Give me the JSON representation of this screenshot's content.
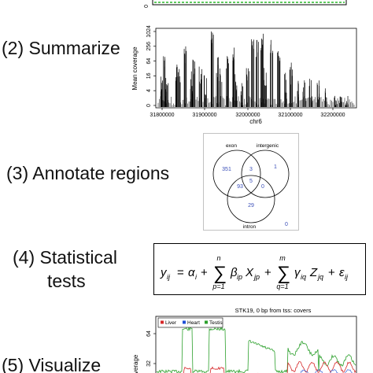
{
  "steps": {
    "summarize": "(2) Summarize",
    "annotate": "(3) Annotate regions",
    "statistical_line1": "(4) Statistical",
    "statistical_line2": "tests",
    "visualize": "(5) Visualize"
  },
  "coverage_plot": {
    "ylabel": "Mean coverage",
    "xlabel": "chr6",
    "y_ticks": [
      "0",
      "4",
      "16",
      "64",
      "256",
      "1024"
    ],
    "x_ticks": [
      "31800000",
      "31900000",
      "32000000",
      "32100000",
      "32200000"
    ],
    "top_fragment_tick": "0"
  },
  "venn": {
    "labels": {
      "exon": "exon",
      "intergenic": "intergenic",
      "intron": "intron"
    },
    "counts": {
      "exon_only": "351",
      "intergenic_only": "1",
      "exon_intergenic": "3",
      "all_three": "5",
      "exon_intron": "93",
      "intergenic_intron": "0",
      "intron_only": "29",
      "none": "0"
    },
    "colors": {
      "counts": "#3b4fb8",
      "circles": "#000000"
    }
  },
  "equation": {
    "lhs": "y",
    "lhs_sub": "ij",
    "alpha": "α",
    "alpha_sub": "i",
    "sum1_top": "n",
    "sum1_bottom": "p=1",
    "beta": "β",
    "beta_sub": "ip",
    "x": "X",
    "x_sub": "jp",
    "sum2_top": "m",
    "sum2_bottom": "q=1",
    "gamma": "γ",
    "gamma_sub": "iq",
    "z": "Z",
    "z_sub": "jq",
    "eps": "ε",
    "eps_sub": "ij"
  },
  "visualize_plot": {
    "title": "STK19, 0 bp from tss: covers",
    "legend": [
      "Liver",
      "Heart",
      "Testis"
    ],
    "legend_colors": [
      "#d62728",
      "#1f4fd6",
      "#2ca02c"
    ],
    "ylabel": "Coverage",
    "y_ticks": [
      "64",
      "32"
    ]
  }
}
